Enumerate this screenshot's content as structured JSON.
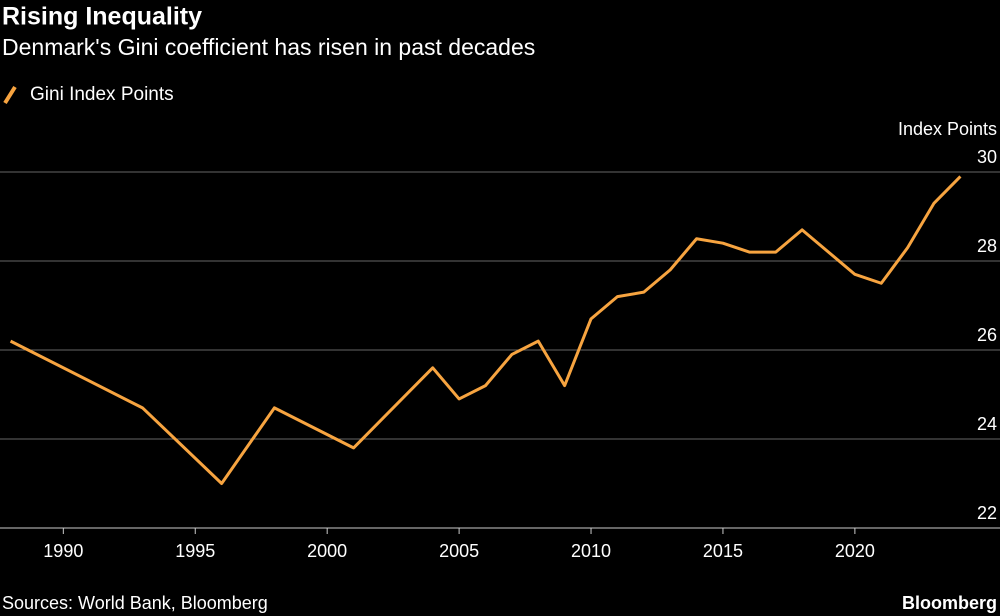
{
  "chart_data": {
    "type": "line",
    "title": "Rising Inequality",
    "subtitle": "Denmark's Gini coefficient has risen in past decades",
    "y_label": "Index Points",
    "source": "Sources: World Bank, Bloomberg",
    "brand": "Bloomberg",
    "x": [
      1988,
      1993,
      1996,
      1998,
      2001,
      2004,
      2005,
      2006,
      2007,
      2008,
      2009,
      2010,
      2011,
      2012,
      2013,
      2014,
      2015,
      2016,
      2017,
      2018,
      2019,
      2020,
      2021,
      2022,
      2023,
      2024
    ],
    "series": [
      {
        "name": "Gini Index Points",
        "color": "#f7a440",
        "values": [
          26.2,
          24.7,
          23.0,
          24.7,
          23.8,
          25.6,
          24.9,
          25.2,
          25.9,
          26.2,
          25.2,
          26.7,
          27.2,
          27.3,
          27.8,
          28.5,
          28.4,
          28.2,
          28.2,
          28.7,
          28.2,
          27.7,
          27.5,
          28.3,
          29.3,
          29.9
        ]
      }
    ],
    "xlim": [
      1987.6,
      2025.5
    ],
    "xticks": [
      1990,
      1995,
      2000,
      2005,
      2010,
      2015,
      2020
    ],
    "ylim": [
      22,
      30
    ],
    "yticks": [
      22,
      24,
      26,
      28,
      30
    ],
    "grid": true
  }
}
